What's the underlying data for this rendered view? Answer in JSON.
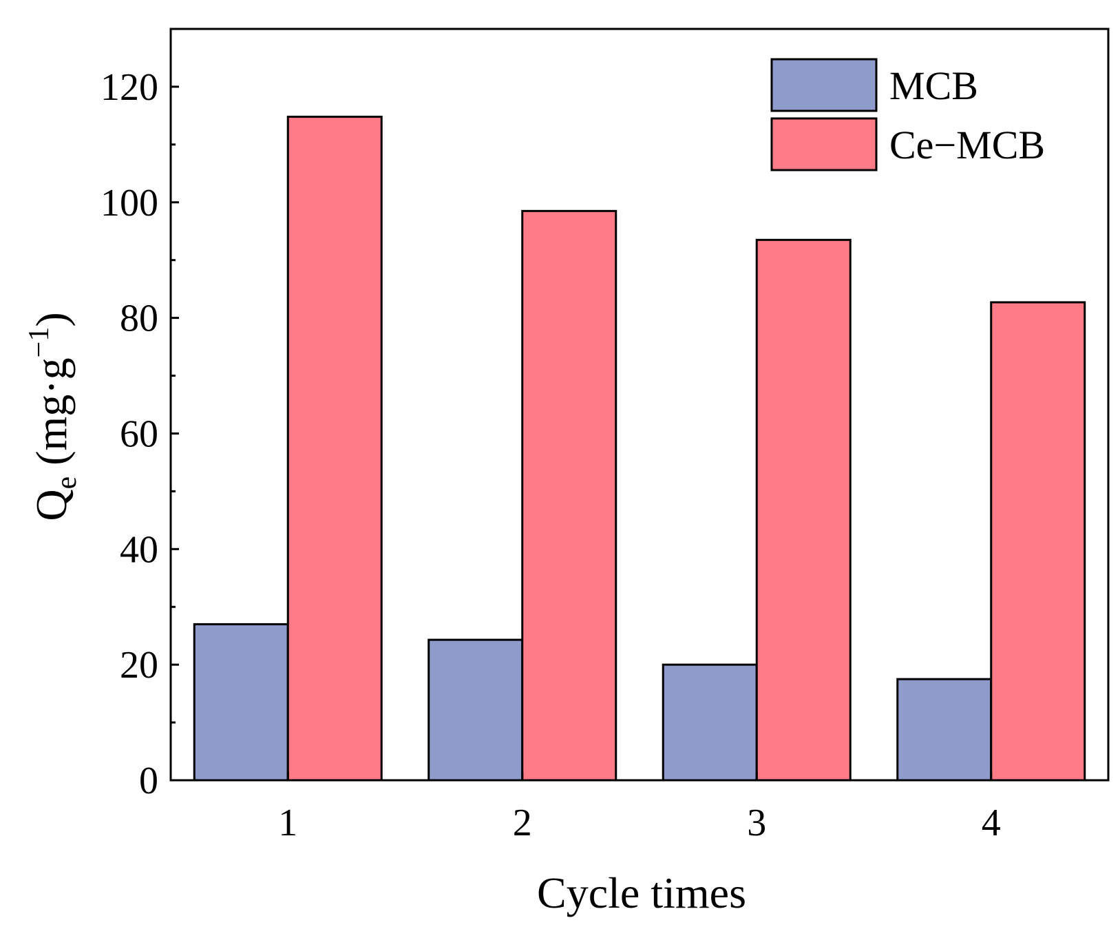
{
  "chart_data": {
    "type": "bar",
    "categories": [
      "1",
      "2",
      "3",
      "4"
    ],
    "series": [
      {
        "name": "MCB",
        "values": [
          27,
          24.3,
          20,
          17.5
        ],
        "color": "#8f9bcb"
      },
      {
        "name": "Ce−MCB",
        "values": [
          114.8,
          98.5,
          93.5,
          82.7
        ],
        "color": "#ff7b87"
      }
    ],
    "title": "",
    "xlabel": "Cycle times",
    "ylabel": {
      "base": "Q",
      "subscript": "e",
      "units_open": " (mg·g",
      "units_superscript": "−1",
      "units_close": ")"
    },
    "ylim": [
      0,
      130
    ],
    "yticks": [
      0,
      20,
      40,
      60,
      80,
      100,
      120
    ],
    "grid": false,
    "legend_position": "top-right"
  }
}
